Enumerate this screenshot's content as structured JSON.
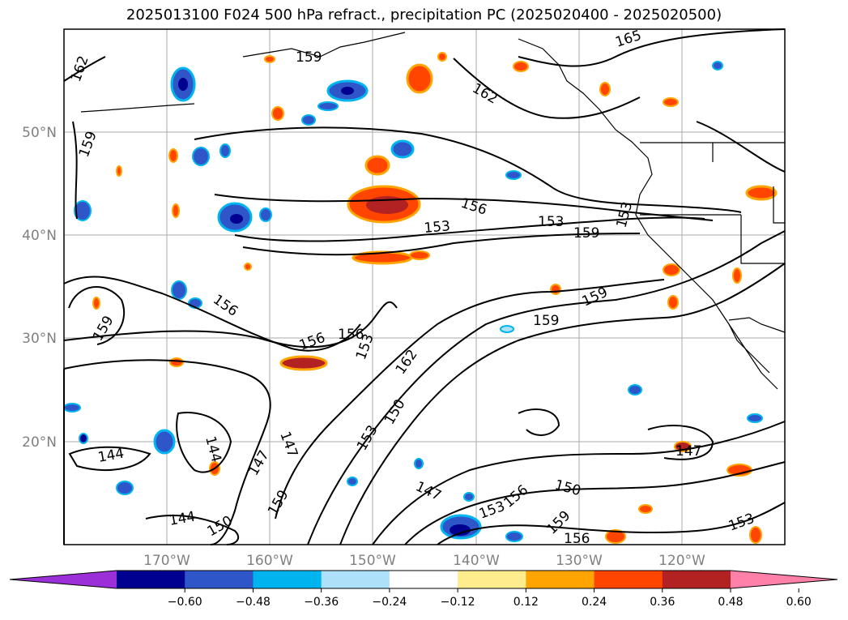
{
  "title": "2025013100 F024 500 hPa refract., precipitation PC (2025020400 - 2025020500)",
  "map": {
    "lat_labels": [
      "50°N",
      "40°N",
      "30°N",
      "20°N"
    ],
    "lon_labels": [
      "170°W",
      "160°W",
      "150°W",
      "140°W",
      "130°W",
      "120°W"
    ],
    "grid": true,
    "contour_labels": [
      "162",
      "159",
      "159",
      "165",
      "162",
      "156",
      "153",
      "153",
      "153",
      "159",
      "156",
      "159",
      "156",
      "156",
      "159",
      "159",
      "153",
      "162",
      "150",
      "153",
      "147",
      "144",
      "144",
      "147",
      "150",
      "144",
      "159",
      "147",
      "153",
      "156",
      "159",
      "156",
      "150",
      "147",
      "153"
    ]
  },
  "colorbar": {
    "extend": "both",
    "colors": [
      "#9b30d9",
      "#000090",
      "#2e56c8",
      "#00b4f0",
      "#aee0fa",
      "#ffffff",
      "#ffec8c",
      "#ffa400",
      "#ff4500",
      "#b22222",
      "#ff80a8"
    ],
    "tick_labels": [
      "−0.60",
      "−0.48",
      "−0.36",
      "−0.24",
      "−0.12",
      "0.12",
      "0.24",
      "0.36",
      "0.48",
      "0.60"
    ]
  }
}
